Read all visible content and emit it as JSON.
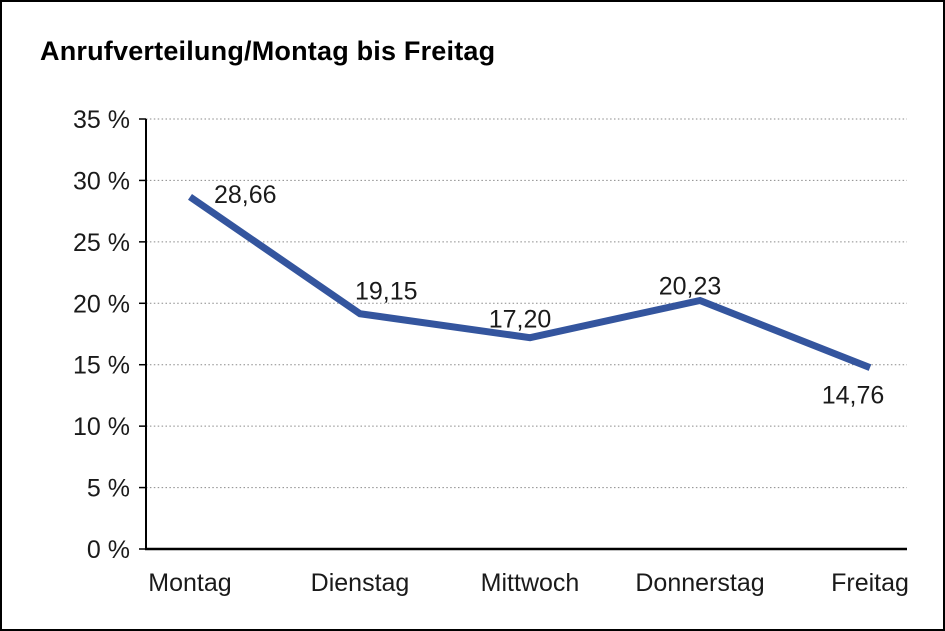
{
  "title": "Anrufverteilung/Montag bis Freitag",
  "chart_data": {
    "type": "line",
    "title": "Anrufverteilung/Montag bis Freitag",
    "categories": [
      "Montag",
      "Dienstag",
      "Mittwoch",
      "Donnerstag",
      "Freitag"
    ],
    "values": [
      28.66,
      19.15,
      17.2,
      20.23,
      14.76
    ],
    "value_labels": [
      "28,66",
      "19,15",
      "17,20",
      "20,23",
      "14,76"
    ],
    "unit": "%",
    "ylim": [
      0,
      35
    ],
    "ytick_step": 5,
    "ytick_labels": [
      "0 %",
      "5 %",
      "10 %",
      "15 %",
      "20 %",
      "25 %",
      "30 %",
      "35 %"
    ],
    "xlabel": "",
    "ylabel": "",
    "grid": "horizontal-dotted",
    "legend_position": "none",
    "colors": {
      "line": "#34559E",
      "grid": "#8A8A8A",
      "axis": "#000000",
      "text": "#1A1A1A",
      "background": "#FFFFFF",
      "frame_border": "#000000"
    }
  }
}
